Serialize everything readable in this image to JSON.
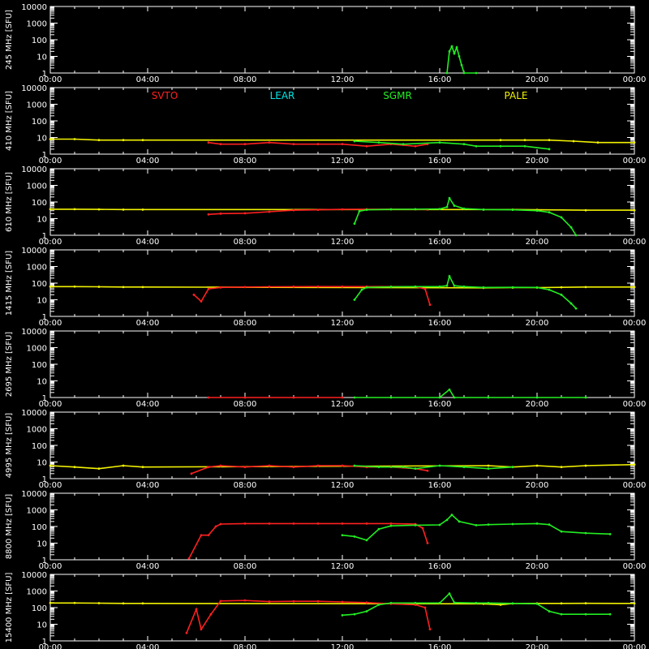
{
  "chart_data": {
    "type": "scatter",
    "x_tick_labels": [
      "00:00",
      "04:00",
      "08:00",
      "12:00",
      "16:00",
      "20:00",
      "00:00"
    ],
    "x_range_hours": [
      0,
      24
    ],
    "y_scale": "log",
    "y_range": [
      1,
      10000
    ],
    "y_tick_labels": [
      "1",
      "10",
      "100",
      "1000",
      "10000"
    ],
    "y_unit": "[SFU]",
    "grid": false,
    "panels": [
      "245 MHz",
      "410 MHz",
      "610 MHz",
      "1415 MHz",
      "2695 MHz",
      "4995 MHz",
      "8800 MHz",
      "15400 MHz"
    ],
    "stations": [
      {
        "name": "SVTO",
        "color": "#ff2020"
      },
      {
        "name": "LEAR",
        "color": "#00e5e5"
      },
      {
        "name": "SGMR",
        "color": "#22ee22"
      },
      {
        "name": "PALE",
        "color": "#f2f200"
      }
    ],
    "series": [
      {
        "panel": "245 MHz",
        "station": "SGMR",
        "points": [
          [
            16.3,
            1
          ],
          [
            16.4,
            20
          ],
          [
            16.5,
            40
          ],
          [
            16.6,
            15
          ],
          [
            16.7,
            35
          ],
          [
            16.8,
            10
          ],
          [
            16.9,
            3
          ],
          [
            17.0,
            1
          ],
          [
            17.5,
            1
          ]
        ]
      },
      {
        "panel": "410 MHz",
        "station": "PALE",
        "points": [
          [
            0,
            8
          ],
          [
            1,
            8
          ],
          [
            2,
            7
          ],
          [
            3,
            7
          ],
          [
            3.8,
            7
          ],
          [
            18.5,
            7
          ],
          [
            19.5,
            7
          ],
          [
            20.5,
            7
          ],
          [
            21.5,
            6
          ],
          [
            22.5,
            5
          ],
          [
            24,
            5
          ]
        ]
      },
      {
        "panel": "410 MHz",
        "station": "SVTO",
        "points": [
          [
            6.5,
            5
          ],
          [
            7,
            4
          ],
          [
            8,
            4
          ],
          [
            9,
            5
          ],
          [
            10,
            4
          ],
          [
            11,
            4
          ],
          [
            12,
            4
          ],
          [
            13,
            3
          ],
          [
            14,
            4
          ],
          [
            15,
            3
          ],
          [
            15.5,
            4
          ]
        ]
      },
      {
        "panel": "410 MHz",
        "station": "SGMR",
        "points": [
          [
            12.5,
            6
          ],
          [
            13.5,
            5
          ],
          [
            14.5,
            4
          ],
          [
            16,
            5
          ],
          [
            17,
            4
          ],
          [
            17.5,
            3
          ],
          [
            18.5,
            3
          ],
          [
            19.5,
            3
          ],
          [
            20.5,
            2
          ]
        ]
      },
      {
        "panel": "610 MHz",
        "station": "PALE",
        "points": [
          [
            0,
            37
          ],
          [
            1,
            37
          ],
          [
            2,
            36
          ],
          [
            3,
            35
          ],
          [
            3.8,
            35
          ],
          [
            17.8,
            35
          ],
          [
            19,
            35
          ],
          [
            20,
            34
          ],
          [
            22,
            32
          ],
          [
            24,
            32
          ]
        ]
      },
      {
        "panel": "610 MHz",
        "station": "SVTO",
        "points": [
          [
            6.5,
            18
          ],
          [
            7,
            20
          ],
          [
            8,
            21
          ],
          [
            9,
            26
          ],
          [
            10,
            32
          ],
          [
            11,
            34
          ],
          [
            12,
            36
          ],
          [
            13,
            37
          ],
          [
            14,
            37
          ],
          [
            15,
            36
          ],
          [
            15.5,
            35
          ]
        ]
      },
      {
        "panel": "610 MHz",
        "station": "SGMR",
        "points": [
          [
            12.5,
            5
          ],
          [
            12.7,
            28
          ],
          [
            13,
            34
          ],
          [
            14,
            36
          ],
          [
            15,
            37
          ],
          [
            16,
            38
          ],
          [
            16.3,
            50
          ],
          [
            16.4,
            170
          ],
          [
            16.6,
            60
          ],
          [
            17,
            40
          ],
          [
            17.8,
            35
          ],
          [
            19,
            34
          ],
          [
            20,
            30
          ],
          [
            20.5,
            24
          ],
          [
            21,
            12
          ],
          [
            21.4,
            3
          ],
          [
            21.6,
            1
          ]
        ]
      },
      {
        "panel": "1415 MHz",
        "station": "PALE",
        "points": [
          [
            0,
            62
          ],
          [
            1,
            62
          ],
          [
            2,
            60
          ],
          [
            3,
            58
          ],
          [
            3.8,
            58
          ],
          [
            17.8,
            52
          ],
          [
            19,
            54
          ],
          [
            20,
            54
          ],
          [
            21,
            56
          ],
          [
            22,
            58
          ],
          [
            24,
            58
          ]
        ]
      },
      {
        "panel": "1415 MHz",
        "station": "SVTO",
        "points": [
          [
            5.9,
            20
          ],
          [
            6.2,
            8
          ],
          [
            6.5,
            45
          ],
          [
            7,
            55
          ],
          [
            8,
            58
          ],
          [
            9,
            60
          ],
          [
            10,
            61
          ],
          [
            11,
            62
          ],
          [
            12,
            62
          ],
          [
            13,
            62
          ],
          [
            14,
            62
          ],
          [
            15,
            62
          ],
          [
            15.4,
            45
          ],
          [
            15.6,
            5
          ]
        ]
      },
      {
        "panel": "1415 MHz",
        "station": "SGMR",
        "points": [
          [
            12.5,
            10
          ],
          [
            12.8,
            40
          ],
          [
            13,
            55
          ],
          [
            14,
            60
          ],
          [
            15,
            62
          ],
          [
            16,
            62
          ],
          [
            16.3,
            70
          ],
          [
            16.4,
            260
          ],
          [
            16.6,
            70
          ],
          [
            17,
            62
          ],
          [
            17.8,
            55
          ],
          [
            19,
            56
          ],
          [
            20,
            55
          ],
          [
            20.5,
            40
          ],
          [
            21,
            20
          ],
          [
            21.4,
            6
          ],
          [
            21.6,
            3
          ]
        ]
      },
      {
        "panel": "2695 MHz",
        "station": "SVTO",
        "points": [
          [
            6.5,
            1
          ],
          [
            8,
            1
          ],
          [
            10,
            1
          ],
          [
            12,
            1
          ]
        ]
      },
      {
        "panel": "2695 MHz",
        "station": "SGMR",
        "points": [
          [
            12.5,
            1
          ],
          [
            14,
            1
          ],
          [
            16,
            1
          ],
          [
            16.4,
            3
          ],
          [
            16.6,
            1
          ],
          [
            18,
            1
          ],
          [
            20,
            1
          ],
          [
            22,
            1
          ]
        ]
      },
      {
        "panel": "4995 MHz",
        "station": "PALE",
        "points": [
          [
            0,
            6
          ],
          [
            1,
            5
          ],
          [
            2,
            4
          ],
          [
            3,
            6
          ],
          [
            3.8,
            5
          ],
          [
            18,
            6
          ],
          [
            19,
            5
          ],
          [
            20,
            6
          ],
          [
            21,
            5
          ],
          [
            22,
            6
          ],
          [
            24,
            7
          ]
        ]
      },
      {
        "panel": "4995 MHz",
        "station": "SVTO",
        "points": [
          [
            5.8,
            2
          ],
          [
            6.5,
            5
          ],
          [
            7,
            6
          ],
          [
            8,
            5
          ],
          [
            9,
            6
          ],
          [
            10,
            5
          ],
          [
            11,
            6
          ],
          [
            12,
            6
          ],
          [
            13,
            5
          ],
          [
            14,
            5
          ],
          [
            15,
            4
          ],
          [
            15.5,
            3
          ]
        ]
      },
      {
        "panel": "4995 MHz",
        "station": "SGMR",
        "points": [
          [
            12.5,
            6
          ],
          [
            13.5,
            5
          ],
          [
            14.5,
            5
          ],
          [
            15,
            4
          ],
          [
            16,
            6
          ],
          [
            17,
            5
          ],
          [
            18,
            4
          ],
          [
            19,
            5
          ]
        ]
      },
      {
        "panel": "8800 MHz",
        "station": "SVTO",
        "points": [
          [
            5.7,
            1.2
          ],
          [
            6.2,
            30
          ],
          [
            6.5,
            30
          ],
          [
            6.8,
            100
          ],
          [
            7,
            140
          ],
          [
            8,
            150
          ],
          [
            9,
            150
          ],
          [
            10,
            150
          ],
          [
            11,
            150
          ],
          [
            12,
            150
          ],
          [
            13,
            150
          ],
          [
            14,
            150
          ],
          [
            15,
            140
          ],
          [
            15.3,
            80
          ],
          [
            15.5,
            10
          ]
        ]
      },
      {
        "panel": "8800 MHz",
        "station": "SGMR",
        "points": [
          [
            12,
            30
          ],
          [
            12.5,
            25
          ],
          [
            13,
            15
          ],
          [
            13.5,
            70
          ],
          [
            14,
            110
          ],
          [
            15,
            120
          ],
          [
            16,
            125
          ],
          [
            16.3,
            250
          ],
          [
            16.5,
            500
          ],
          [
            16.8,
            200
          ],
          [
            17.5,
            120
          ],
          [
            18,
            130
          ],
          [
            19,
            140
          ],
          [
            20,
            150
          ],
          [
            20.5,
            130
          ],
          [
            21,
            50
          ],
          [
            22,
            40
          ],
          [
            23,
            35
          ]
        ]
      },
      {
        "panel": "15400 MHz",
        "station": "PALE",
        "points": [
          [
            0,
            190
          ],
          [
            1,
            190
          ],
          [
            2,
            185
          ],
          [
            3,
            180
          ],
          [
            3.8,
            180
          ],
          [
            17.8,
            170
          ],
          [
            18.5,
            150
          ],
          [
            19,
            175
          ],
          [
            20,
            180
          ],
          [
            21,
            180
          ],
          [
            22,
            182
          ],
          [
            24,
            180
          ]
        ]
      },
      {
        "panel": "15400 MHz",
        "station": "SVTO",
        "points": [
          [
            5.6,
            3
          ],
          [
            6,
            80
          ],
          [
            6.2,
            5
          ],
          [
            6.6,
            40
          ],
          [
            7,
            250
          ],
          [
            8,
            270
          ],
          [
            9,
            230
          ],
          [
            10,
            240
          ],
          [
            11,
            240
          ],
          [
            12,
            220
          ],
          [
            13,
            200
          ],
          [
            14,
            170
          ],
          [
            15,
            150
          ],
          [
            15.4,
            100
          ],
          [
            15.6,
            5
          ]
        ]
      },
      {
        "panel": "15400 MHz",
        "station": "SGMR",
        "points": [
          [
            12,
            35
          ],
          [
            12.5,
            40
          ],
          [
            13,
            60
          ],
          [
            13.5,
            150
          ],
          [
            14,
            190
          ],
          [
            15,
            190
          ],
          [
            16,
            190
          ],
          [
            16.4,
            700
          ],
          [
            16.6,
            200
          ],
          [
            17.5,
            190
          ],
          [
            18,
            190
          ],
          [
            19,
            180
          ],
          [
            20,
            170
          ],
          [
            20.5,
            60
          ],
          [
            21,
            40
          ],
          [
            22,
            40
          ],
          [
            23,
            40
          ]
        ]
      }
    ]
  }
}
